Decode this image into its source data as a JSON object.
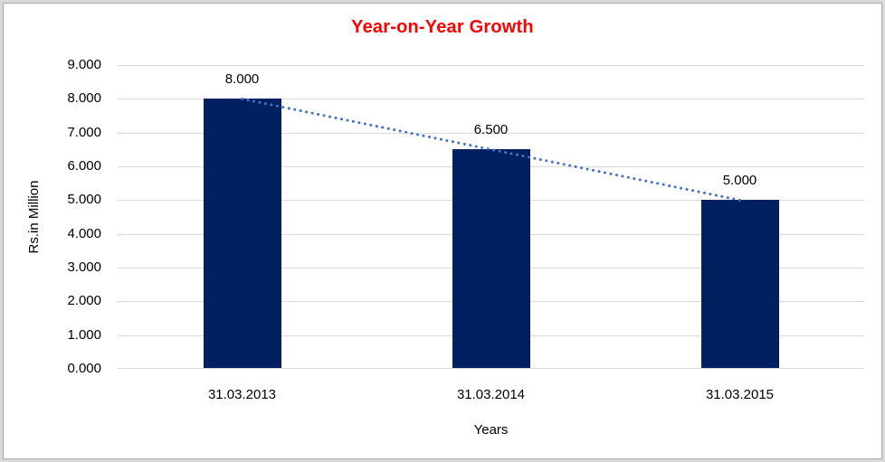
{
  "chart_data": {
    "type": "bar",
    "title": "Year-on-Year Growth",
    "title_color": "#ff0000",
    "categories": [
      "31.03.2013",
      "31.03.2014",
      "31.03.2015"
    ],
    "values": [
      8.0,
      6.5,
      5.0
    ],
    "value_labels": [
      "8.000",
      "6.500",
      "5.000"
    ],
    "xlabel": "Years",
    "ylabel": "Rs.in Million",
    "ylim": [
      0,
      9
    ],
    "y_tick_step": 1,
    "y_tick_labels": [
      "0.000",
      "1.000",
      "2.000",
      "3.000",
      "4.000",
      "5.000",
      "6.000",
      "7.000",
      "8.000",
      "9.000"
    ],
    "grid": "horizontal",
    "gridline_color": "#d9d9d9",
    "legend": "none",
    "bar_color": "#002060",
    "trendline": {
      "type": "linear",
      "style": "dotted",
      "color": "#4472c4"
    }
  }
}
